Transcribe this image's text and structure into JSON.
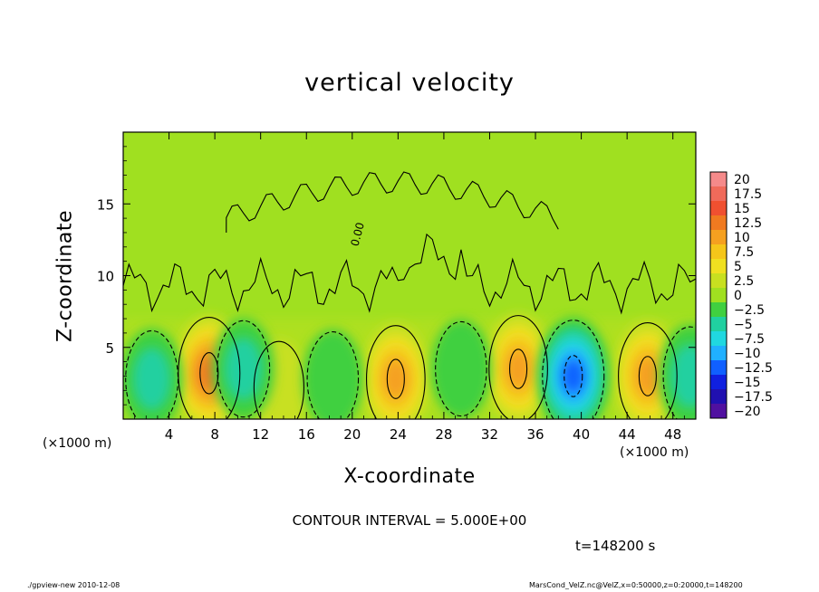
{
  "chart_data": {
    "type": "heatmap",
    "title": "vertical velocity",
    "xlabel": "X-coordinate",
    "ylabel": "Z-coordinate",
    "x_unit_left": "(×1000 m)",
    "x_unit_right": "(×1000 m)",
    "xlim": [
      0,
      50
    ],
    "ylim": [
      0,
      20
    ],
    "x_ticks": [
      4,
      8,
      12,
      16,
      20,
      24,
      28,
      32,
      36,
      40,
      44,
      48
    ],
    "y_ticks": [
      5,
      10,
      15
    ],
    "colorbar": {
      "levels": [
        20,
        17.5,
        15,
        12.5,
        10,
        7.5,
        5,
        2.5,
        0,
        -2.5,
        -5,
        -7.5,
        -10,
        -12.5,
        -15,
        -17.5,
        -20
      ],
      "colors": [
        "#f58a8a",
        "#f06a5a",
        "#f05030",
        "#f07a20",
        "#f5a020",
        "#f5c61a",
        "#f0e020",
        "#c8e020",
        "#a0e020",
        "#40d040",
        "#20d0a0",
        "#20d8e0",
        "#20b0ff",
        "#1060ff",
        "#1020e0",
        "#2010b0",
        "#5010a0"
      ]
    },
    "contour_label": "0.00",
    "updrafts": [
      {
        "x": 7.5,
        "z": 3.2,
        "peak": 12.5
      },
      {
        "x": 23.8,
        "z": 2.8,
        "peak": 10
      },
      {
        "x": 34.5,
        "z": 3.5,
        "peak": 10
      },
      {
        "x": 45.8,
        "z": 3.0,
        "peak": 10
      },
      {
        "x": 13.6,
        "z": 2.2,
        "peak": 3
      }
    ],
    "downdrafts": [
      {
        "x": 39.3,
        "z": 3.0,
        "peak": -12.5
      },
      {
        "x": 2.5,
        "z": 2.8,
        "peak": -5
      },
      {
        "x": 10.5,
        "z": 3.5,
        "peak": -5
      },
      {
        "x": 18.3,
        "z": 2.8,
        "peak": -4
      },
      {
        "x": 29.5,
        "z": 3.5,
        "peak": -4
      },
      {
        "x": 49.5,
        "z": 3.0,
        "peak": -6
      }
    ],
    "contour_interval_text": "CONTOUR INTERVAL = 5.000E+00",
    "time_text": "t=148200 s"
  },
  "footer": {
    "left": "./gpview-new   2010-12-08",
    "right": "MarsCond_VelZ.nc@VelZ,x=0:50000,z=0:20000,t=148200"
  }
}
